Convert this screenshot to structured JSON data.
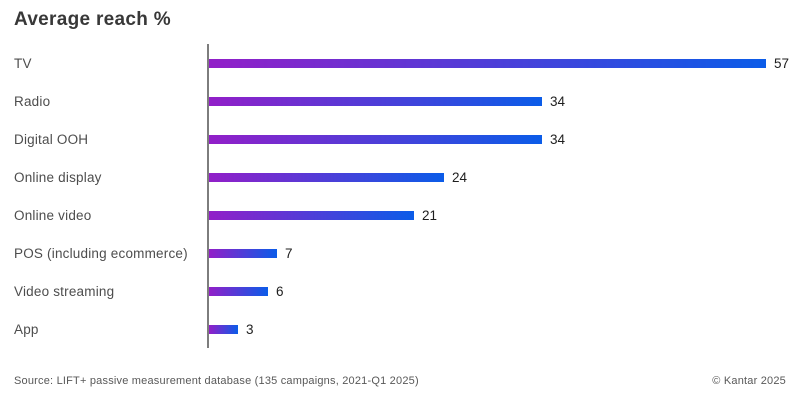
{
  "title": "Average reach %",
  "chart_data": {
    "type": "bar",
    "orientation": "horizontal",
    "title": "Average reach %",
    "categories": [
      "TV",
      "Radio",
      "Digital OOH",
      "Online display",
      "Online video",
      "POS (including ecommerce)",
      "Video streaming",
      "App"
    ],
    "values": [
      57,
      34,
      34,
      24,
      21,
      7,
      6,
      3
    ],
    "xlim": [
      0,
      60
    ],
    "value_labels_shown": true,
    "grid": false,
    "legend": "none",
    "bar_gradient_start": "#921fc8",
    "bar_gradient_end": "#0b5ce8",
    "axis_line_color": "#7d7d7d"
  },
  "footer": {
    "source": "Source: LIFT+ passive measurement database (135 campaigns, 2021-Q1 2025)",
    "copyright": "© Kantar 2025"
  }
}
